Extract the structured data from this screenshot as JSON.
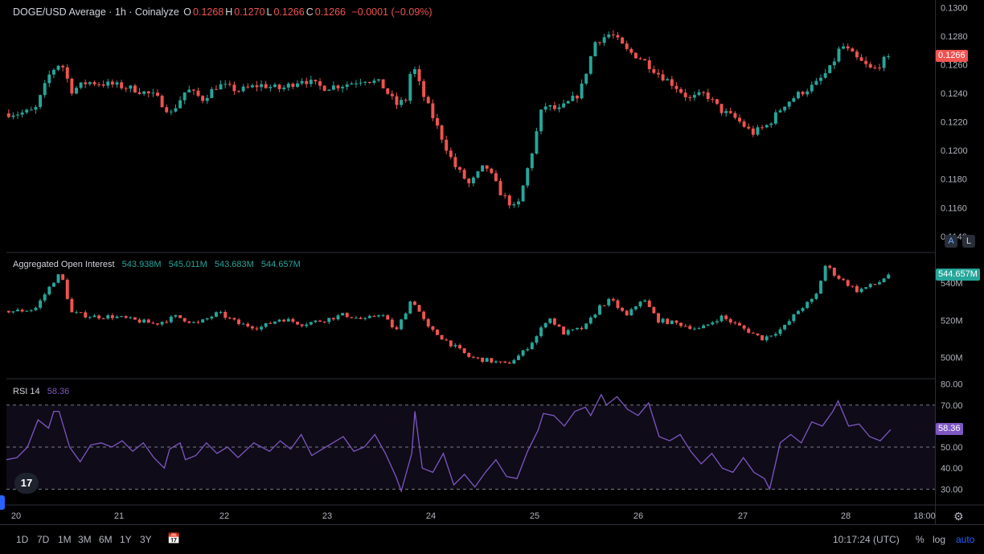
{
  "header": {
    "title": "DOGE/USD Average · 1h · Coinalyze",
    "ohlc": [
      {
        "k": "O",
        "v": "0.1268"
      },
      {
        "k": "H",
        "v": "0.1270"
      },
      {
        "k": "L",
        "v": "0.1266"
      },
      {
        "k": "C",
        "v": "0.1266"
      }
    ],
    "change": "−0.0001 (−0.09%)"
  },
  "oi_legend": {
    "label": "Aggregated Open Interest",
    "values": [
      "543.938M",
      "545.011M",
      "543.683M",
      "544.657M"
    ]
  },
  "rsi_legend": {
    "label": "RSI 14",
    "value": "58.36"
  },
  "badges": {
    "price": "0.1266",
    "oi": "544.657M",
    "rsi": "58.36"
  },
  "toggles": {
    "auto_letter": "A",
    "log_letter": "L"
  },
  "logo_text": "17",
  "ranges": [
    "1D",
    "7D",
    "1M",
    "3M",
    "6M",
    "1Y",
    "3Y"
  ],
  "bottom_right": {
    "time": "10:17:24 (UTC)",
    "percent": "%",
    "log": "log",
    "auto": "auto"
  },
  "colors": {
    "up": "#26a69a",
    "down": "#ef5350",
    "rsi": "#7e57c2",
    "price_badge": "#ef5350",
    "oi_badge": "#26a69a",
    "rsi_badge": "#7e57c2"
  },
  "icons": {
    "calendar": "calendar-icon",
    "settings": "gear-icon"
  },
  "chart_data": [
    {
      "type": "candlestick",
      "title": "DOGE/USD Average · 1h · Coinalyze",
      "x_labels": [
        "20",
        "21",
        "22",
        "23",
        "24",
        "25",
        "26",
        "27",
        "28",
        "18:00"
      ],
      "y_ticks": [
        "0.1300",
        "0.1280",
        "0.1260",
        "0.1240",
        "0.1220",
        "0.1200",
        "0.1180",
        "0.1160",
        "0.1140"
      ],
      "ylim": [
        0.1132,
        0.1302
      ],
      "last": 0.1266,
      "close_path": [
        [
          0.1,
          0.1226
        ],
        [
          0.25,
          0.1228
        ],
        [
          0.4,
          0.1255
        ],
        [
          0.5,
          0.1262
        ],
        [
          0.6,
          0.1242
        ],
        [
          0.75,
          0.1248
        ],
        [
          1.0,
          0.1246
        ],
        [
          1.2,
          0.1243
        ],
        [
          1.4,
          0.1238
        ],
        [
          1.55,
          0.1226
        ],
        [
          1.7,
          0.1243
        ],
        [
          1.85,
          0.1236
        ],
        [
          2.0,
          0.1246
        ],
        [
          2.2,
          0.1242
        ],
        [
          2.4,
          0.1246
        ],
        [
          2.6,
          0.1243
        ],
        [
          2.8,
          0.125
        ],
        [
          3.0,
          0.1244
        ],
        [
          3.2,
          0.1246
        ],
        [
          3.4,
          0.125
        ],
        [
          3.55,
          0.1247
        ],
        [
          3.7,
          0.1232
        ],
        [
          3.8,
          0.1236
        ],
        [
          3.85,
          0.1262
        ],
        [
          3.95,
          0.124
        ],
        [
          4.1,
          0.1215
        ],
        [
          4.25,
          0.119
        ],
        [
          4.4,
          0.1176
        ],
        [
          4.55,
          0.119
        ],
        [
          4.7,
          0.117
        ],
        [
          4.85,
          0.1158
        ],
        [
          5.0,
          0.12
        ],
        [
          5.1,
          0.1232
        ],
        [
          5.25,
          0.1228
        ],
        [
          5.45,
          0.124
        ],
        [
          5.6,
          0.1276
        ],
        [
          5.75,
          0.1282
        ],
        [
          5.9,
          0.127
        ],
        [
          6.05,
          0.1264
        ],
        [
          6.2,
          0.1254
        ],
        [
          6.35,
          0.1246
        ],
        [
          6.5,
          0.1236
        ],
        [
          6.65,
          0.124
        ],
        [
          6.8,
          0.1228
        ],
        [
          6.95,
          0.1222
        ],
        [
          7.1,
          0.1212
        ],
        [
          7.25,
          0.1218
        ],
        [
          7.4,
          0.1232
        ],
        [
          7.55,
          0.124
        ],
        [
          7.7,
          0.1246
        ],
        [
          7.85,
          0.1258
        ],
        [
          7.95,
          0.1274
        ],
        [
          8.1,
          0.1264
        ],
        [
          8.25,
          0.1256
        ],
        [
          8.4,
          0.1266
        ]
      ]
    },
    {
      "type": "candlestick",
      "title": "Aggregated Open Interest",
      "y_ticks": [
        "540M",
        "520M",
        "500M"
      ],
      "ylim": [
        491,
        554
      ],
      "last": 544.657,
      "close_path": [
        [
          0.1,
          525
        ],
        [
          0.25,
          526
        ],
        [
          0.45,
          543
        ],
        [
          0.5,
          545
        ],
        [
          0.6,
          524
        ],
        [
          0.8,
          522
        ],
        [
          1.0,
          522
        ],
        [
          1.2,
          520
        ],
        [
          1.4,
          518
        ],
        [
          1.6,
          522
        ],
        [
          1.8,
          518
        ],
        [
          2.0,
          524
        ],
        [
          2.2,
          518
        ],
        [
          2.4,
          516
        ],
        [
          2.6,
          521
        ],
        [
          2.8,
          518
        ],
        [
          3.0,
          520
        ],
        [
          3.2,
          523
        ],
        [
          3.4,
          520
        ],
        [
          3.55,
          524
        ],
        [
          3.7,
          514
        ],
        [
          3.85,
          532
        ],
        [
          4.0,
          516
        ],
        [
          4.2,
          508
        ],
        [
          4.4,
          500
        ],
        [
          4.6,
          498
        ],
        [
          4.75,
          496
        ],
        [
          4.9,
          502
        ],
        [
          5.05,
          512
        ],
        [
          5.15,
          522
        ],
        [
          5.3,
          513
        ],
        [
          5.5,
          516
        ],
        [
          5.65,
          528
        ],
        [
          5.75,
          531
        ],
        [
          5.9,
          522
        ],
        [
          6.05,
          532
        ],
        [
          6.2,
          520
        ],
        [
          6.4,
          518
        ],
        [
          6.6,
          515
        ],
        [
          6.8,
          522
        ],
        [
          7.0,
          516
        ],
        [
          7.2,
          510
        ],
        [
          7.4,
          516
        ],
        [
          7.55,
          526
        ],
        [
          7.7,
          532
        ],
        [
          7.8,
          550
        ],
        [
          7.9,
          544
        ],
        [
          8.1,
          536
        ],
        [
          8.3,
          540
        ],
        [
          8.4,
          545
        ]
      ]
    },
    {
      "type": "line",
      "title": "RSI 14",
      "series": [
        {
          "name": "RSI 14",
          "values": [
            [
              0.0,
              44
            ],
            [
              0.1,
              45
            ],
            [
              0.2,
              50
            ],
            [
              0.3,
              63
            ],
            [
              0.4,
              59
            ],
            [
              0.45,
              67
            ],
            [
              0.5,
              67
            ],
            [
              0.6,
              50
            ],
            [
              0.7,
              43
            ],
            [
              0.8,
              51
            ],
            [
              0.9,
              52
            ],
            [
              1.0,
              50
            ],
            [
              1.1,
              53
            ],
            [
              1.2,
              48
            ],
            [
              1.3,
              52
            ],
            [
              1.4,
              45
            ],
            [
              1.5,
              40
            ],
            [
              1.55,
              49
            ],
            [
              1.65,
              52
            ],
            [
              1.7,
              44
            ],
            [
              1.8,
              46
            ],
            [
              1.9,
              52
            ],
            [
              2.0,
              47
            ],
            [
              2.1,
              50
            ],
            [
              2.2,
              45
            ],
            [
              2.35,
              52
            ],
            [
              2.5,
              48
            ],
            [
              2.6,
              53
            ],
            [
              2.7,
              49
            ],
            [
              2.8,
              56
            ],
            [
              2.9,
              46
            ],
            [
              3.0,
              49
            ],
            [
              3.1,
              52
            ],
            [
              3.2,
              55
            ],
            [
              3.3,
              48
            ],
            [
              3.4,
              50
            ],
            [
              3.5,
              56
            ],
            [
              3.6,
              47
            ],
            [
              3.7,
              36
            ],
            [
              3.75,
              29
            ],
            [
              3.85,
              47
            ],
            [
              3.88,
              67
            ],
            [
              3.95,
              40
            ],
            [
              4.05,
              38
            ],
            [
              4.15,
              47
            ],
            [
              4.25,
              32
            ],
            [
              4.35,
              37
            ],
            [
              4.45,
              31
            ],
            [
              4.55,
              38
            ],
            [
              4.65,
              44
            ],
            [
              4.75,
              36
            ],
            [
              4.85,
              35
            ],
            [
              4.95,
              48
            ],
            [
              5.05,
              58
            ],
            [
              5.1,
              66
            ],
            [
              5.2,
              65
            ],
            [
              5.3,
              60
            ],
            [
              5.4,
              67
            ],
            [
              5.5,
              69
            ],
            [
              5.55,
              65
            ],
            [
              5.65,
              75
            ],
            [
              5.7,
              70
            ],
            [
              5.8,
              74
            ],
            [
              5.9,
              68
            ],
            [
              6.0,
              65
            ],
            [
              6.1,
              71
            ],
            [
              6.2,
              55
            ],
            [
              6.3,
              53
            ],
            [
              6.4,
              56
            ],
            [
              6.5,
              48
            ],
            [
              6.6,
              42
            ],
            [
              6.7,
              47
            ],
            [
              6.8,
              40
            ],
            [
              6.9,
              38
            ],
            [
              7.0,
              45
            ],
            [
              7.1,
              38
            ],
            [
              7.2,
              35
            ],
            [
              7.25,
              30
            ],
            [
              7.35,
              52
            ],
            [
              7.45,
              56
            ],
            [
              7.55,
              52
            ],
            [
              7.65,
              62
            ],
            [
              7.75,
              60
            ],
            [
              7.85,
              67
            ],
            [
              7.9,
              72
            ],
            [
              8.0,
              60
            ],
            [
              8.1,
              61
            ],
            [
              8.2,
              55
            ],
            [
              8.3,
              53
            ],
            [
              8.4,
              58.36
            ]
          ]
        }
      ],
      "y_ticks": [
        "80.00",
        "70.00",
        "50.00",
        "40.00",
        "30.00"
      ],
      "ylim": [
        24,
        81
      ],
      "bands": [
        30,
        50,
        70
      ]
    }
  ]
}
